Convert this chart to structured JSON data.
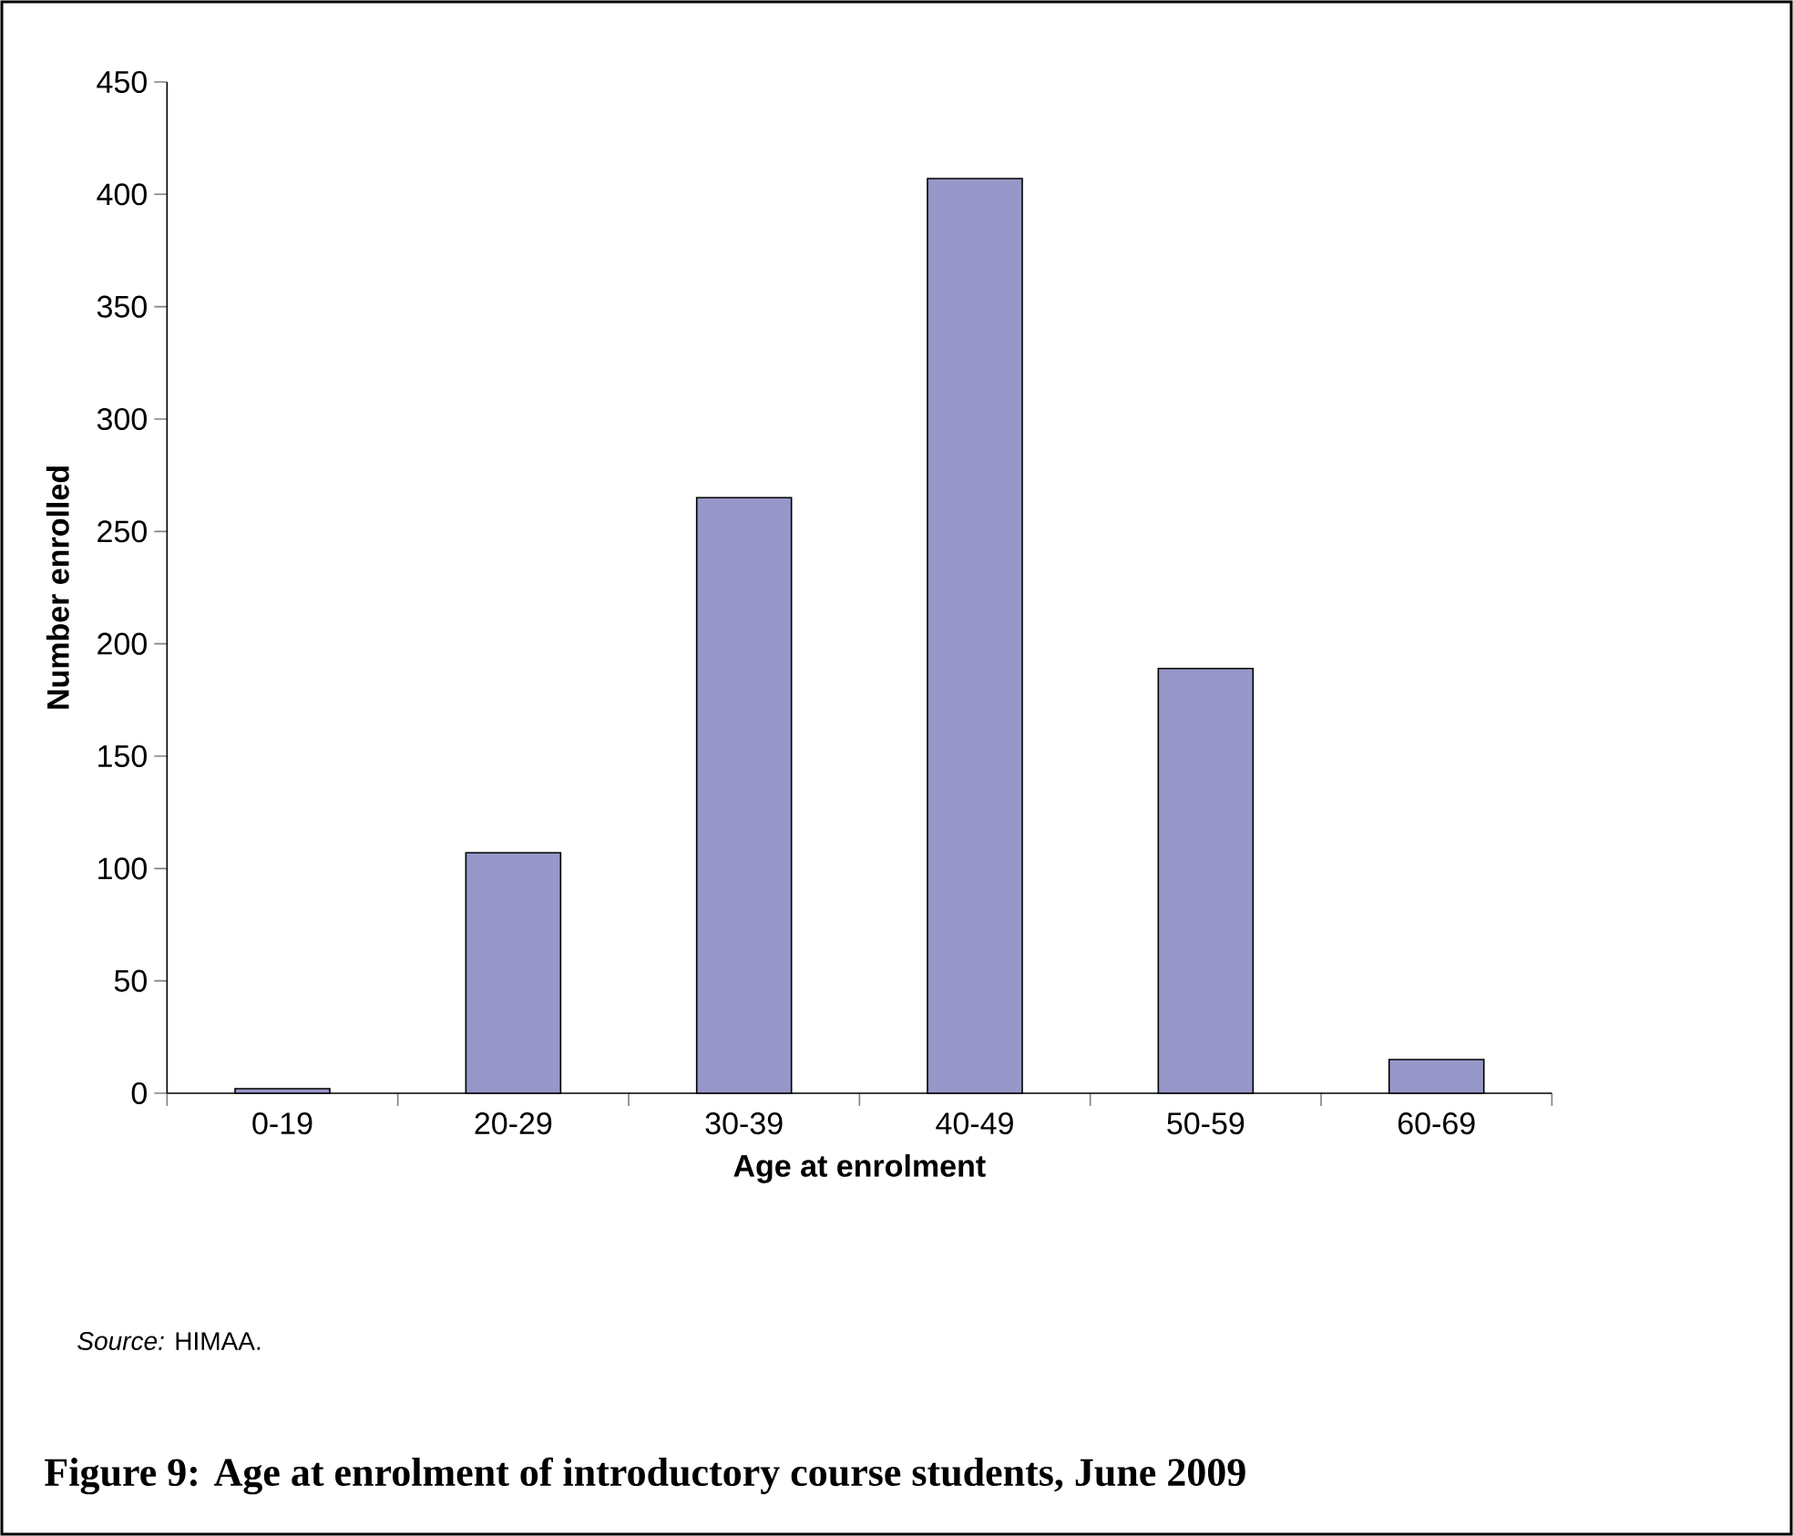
{
  "chart_data": {
    "type": "bar",
    "title": "Figure 9: Age at enrolment of introductory course students, June 2009",
    "xlabel": "Age at enrolment",
    "ylabel": "Number enrolled",
    "annotations": [
      "*Source:* HIMAA."
    ],
    "categories": [
      "0-19",
      "20-29",
      "30-39",
      "40-49",
      "50-59",
      "60-69"
    ],
    "values": [
      2,
      107,
      265,
      407,
      189,
      15
    ],
    "color": "#9797c9",
    "ylim": [
      0,
      450
    ],
    "yticks": [
      0,
      50,
      100,
      150,
      200,
      250,
      300,
      350,
      400,
      450
    ]
  }
}
